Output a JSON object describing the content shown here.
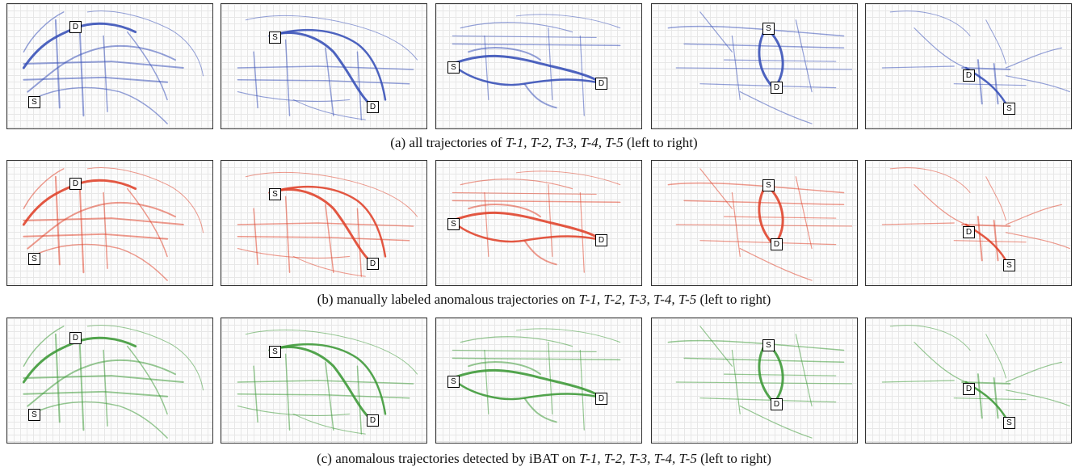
{
  "rows": [
    {
      "id": "a",
      "caption_prefix": "(a) all trajectories of",
      "caption_ids": "T-1, T-2, T-3, T-4, T-5",
      "caption_suffix": "(left to right)",
      "color": "#3a52b8",
      "panels": [
        {
          "S": "S",
          "D": "D"
        },
        {
          "S": "S",
          "D": "D"
        },
        {
          "S": "S",
          "D": "D"
        },
        {
          "S": "S",
          "D": "D"
        },
        {
          "S": "S",
          "D": "D"
        }
      ]
    },
    {
      "id": "b",
      "caption_prefix": "(b) manually labeled anomalous trajectories on",
      "caption_ids": "T-1, T-2, T-3, T-4, T-5",
      "caption_suffix": "(left to right)",
      "color": "#e0452e",
      "panels": [
        {
          "S": "S",
          "D": "D"
        },
        {
          "S": "S",
          "D": "D"
        },
        {
          "S": "S",
          "D": "D"
        },
        {
          "S": "S",
          "D": "D"
        },
        {
          "S": "S",
          "D": "D"
        }
      ]
    },
    {
      "id": "c",
      "caption_prefix": "(c) anomalous trajectories detected by iBAT on",
      "caption_ids": "T-1, T-2, T-3, T-4, T-5",
      "caption_suffix": "(left to right)",
      "color": "#3f9a3a",
      "panels": [
        {
          "S": "S",
          "D": "D"
        },
        {
          "S": "S",
          "D": "D"
        },
        {
          "S": "S",
          "D": "D"
        },
        {
          "S": "S",
          "D": "D"
        },
        {
          "S": "S",
          "D": "D"
        }
      ]
    }
  ]
}
